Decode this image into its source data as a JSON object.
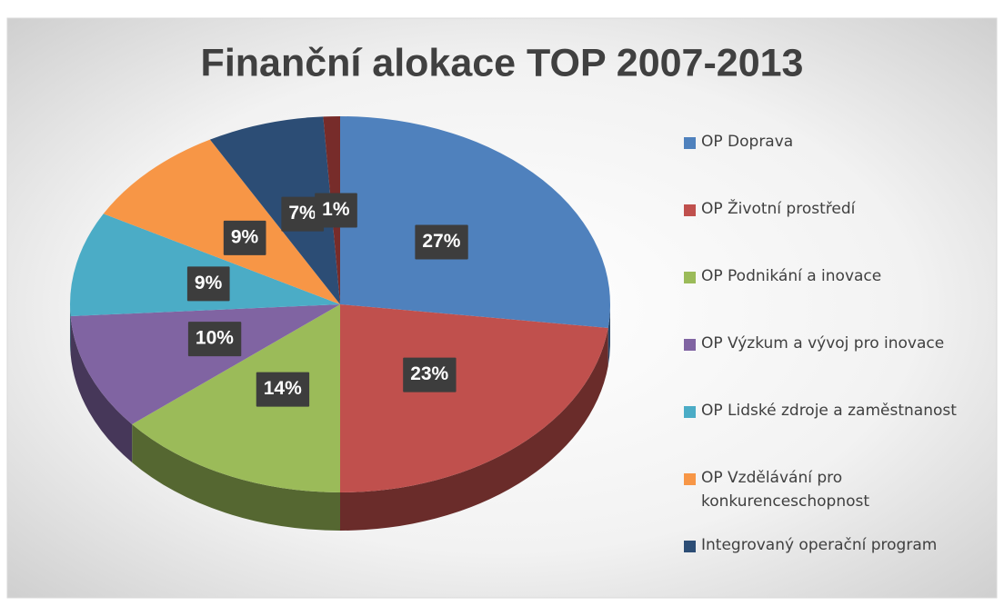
{
  "chart_data": {
    "type": "pie",
    "title": "Finanční alokace TOP 2007-2013",
    "categories": [
      "OP Doprava",
      "OP Životní prostředí",
      "OP Podnikání a inovace",
      "OP Výzkum a vývoj pro inovace",
      "OP Lidské zdroje a zaměstnanost",
      "OP Vzdělávání pro konkurenceschopnost",
      "Integrovaný operační program",
      null
    ],
    "values": [
      27,
      23,
      14,
      10,
      9,
      9,
      7,
      1
    ],
    "value_labels": [
      "27%",
      "23%",
      "14%",
      "10%",
      "9%",
      "9%",
      "7%",
      "1%"
    ],
    "colors": [
      "#4f81bd",
      "#c0504d",
      "#9bbb59",
      "#8064a2",
      "#4bacc6",
      "#f79646",
      "#2c4d75",
      "#772c2a"
    ],
    "legend": "right"
  }
}
